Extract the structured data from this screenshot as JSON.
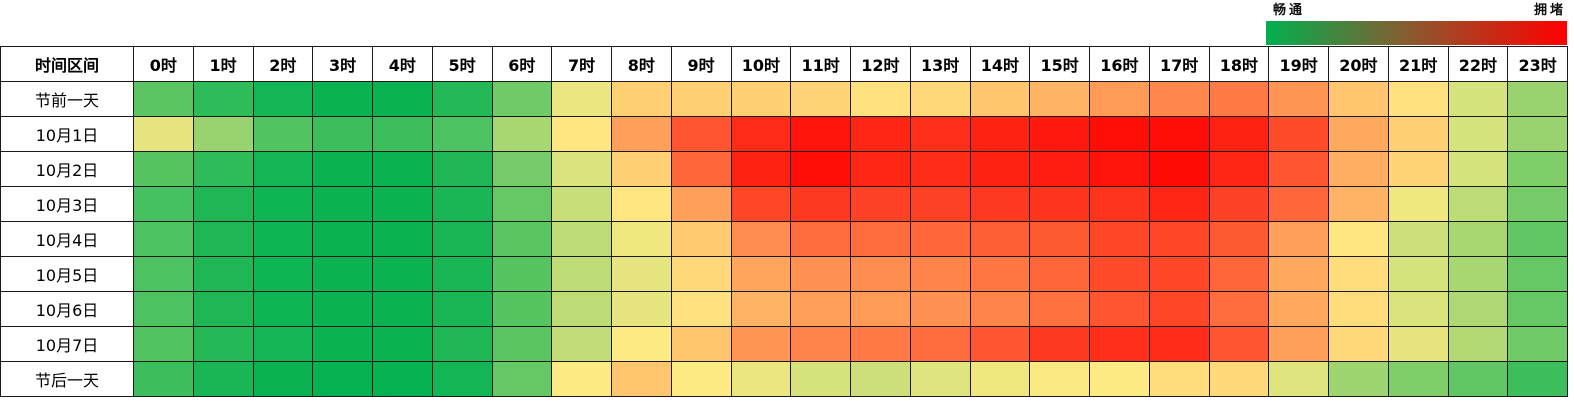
{
  "legend": {
    "low_label": "畅通",
    "high_label": "拥堵",
    "colors": [
      "#00b050",
      "#ffeb84",
      "#ff0000"
    ]
  },
  "chart_data": {
    "type": "heatmap",
    "title": "",
    "corner_label": "时间区间",
    "columns": [
      "0时",
      "1时",
      "2时",
      "3时",
      "4时",
      "5时",
      "6时",
      "7时",
      "8时",
      "9时",
      "10时",
      "11时",
      "12时",
      "13时",
      "14时",
      "15时",
      "16时",
      "17时",
      "18时",
      "19时",
      "20时",
      "21时",
      "22时",
      "23时"
    ],
    "rows": [
      "节前一天",
      "10月1日",
      "10月2日",
      "10月3日",
      "10月4日",
      "10月5日",
      "10月6日",
      "10月7日",
      "节后一天"
    ],
    "scale": {
      "min": 0,
      "max": 1,
      "low": "畅通",
      "high": "拥堵"
    },
    "values": [
      [
        0.18,
        0.09,
        0.04,
        0.02,
        0.02,
        0.07,
        0.22,
        0.46,
        0.56,
        0.56,
        0.56,
        0.55,
        0.52,
        0.54,
        0.58,
        0.62,
        0.67,
        0.71,
        0.74,
        0.68,
        0.58,
        0.52,
        0.42,
        0.3
      ],
      [
        0.45,
        0.3,
        0.16,
        0.12,
        0.12,
        0.15,
        0.33,
        0.51,
        0.66,
        0.82,
        0.91,
        0.96,
        0.92,
        0.9,
        0.93,
        0.95,
        0.97,
        0.97,
        0.93,
        0.84,
        0.64,
        0.56,
        0.42,
        0.3
      ],
      [
        0.17,
        0.09,
        0.04,
        0.02,
        0.02,
        0.06,
        0.23,
        0.43,
        0.56,
        0.78,
        0.93,
        0.97,
        0.92,
        0.91,
        0.93,
        0.94,
        0.96,
        0.98,
        0.92,
        0.82,
        0.63,
        0.55,
        0.42,
        0.25
      ],
      [
        0.14,
        0.06,
        0.03,
        0.02,
        0.02,
        0.05,
        0.2,
        0.39,
        0.51,
        0.66,
        0.85,
        0.88,
        0.86,
        0.86,
        0.88,
        0.89,
        0.89,
        0.92,
        0.86,
        0.78,
        0.62,
        0.47,
        0.37,
        0.23
      ],
      [
        0.15,
        0.06,
        0.03,
        0.02,
        0.02,
        0.05,
        0.18,
        0.37,
        0.47,
        0.57,
        0.7,
        0.77,
        0.77,
        0.78,
        0.8,
        0.81,
        0.85,
        0.85,
        0.81,
        0.66,
        0.51,
        0.4,
        0.33,
        0.19
      ],
      [
        0.15,
        0.06,
        0.03,
        0.02,
        0.02,
        0.05,
        0.17,
        0.37,
        0.45,
        0.54,
        0.65,
        0.69,
        0.7,
        0.72,
        0.75,
        0.78,
        0.84,
        0.85,
        0.78,
        0.64,
        0.53,
        0.42,
        0.33,
        0.2
      ],
      [
        0.15,
        0.06,
        0.03,
        0.02,
        0.02,
        0.05,
        0.17,
        0.37,
        0.45,
        0.52,
        0.62,
        0.66,
        0.67,
        0.69,
        0.72,
        0.76,
        0.82,
        0.85,
        0.77,
        0.64,
        0.53,
        0.43,
        0.34,
        0.2
      ],
      [
        0.16,
        0.07,
        0.04,
        0.02,
        0.02,
        0.06,
        0.18,
        0.38,
        0.5,
        0.58,
        0.68,
        0.72,
        0.74,
        0.77,
        0.82,
        0.88,
        0.9,
        0.91,
        0.82,
        0.66,
        0.54,
        0.45,
        0.35,
        0.22
      ],
      [
        0.12,
        0.05,
        0.02,
        0.01,
        0.01,
        0.04,
        0.2,
        0.5,
        0.58,
        0.5,
        0.46,
        0.42,
        0.4,
        0.44,
        0.47,
        0.49,
        0.5,
        0.53,
        0.54,
        0.44,
        0.31,
        0.25,
        0.19,
        0.12
      ]
    ]
  }
}
